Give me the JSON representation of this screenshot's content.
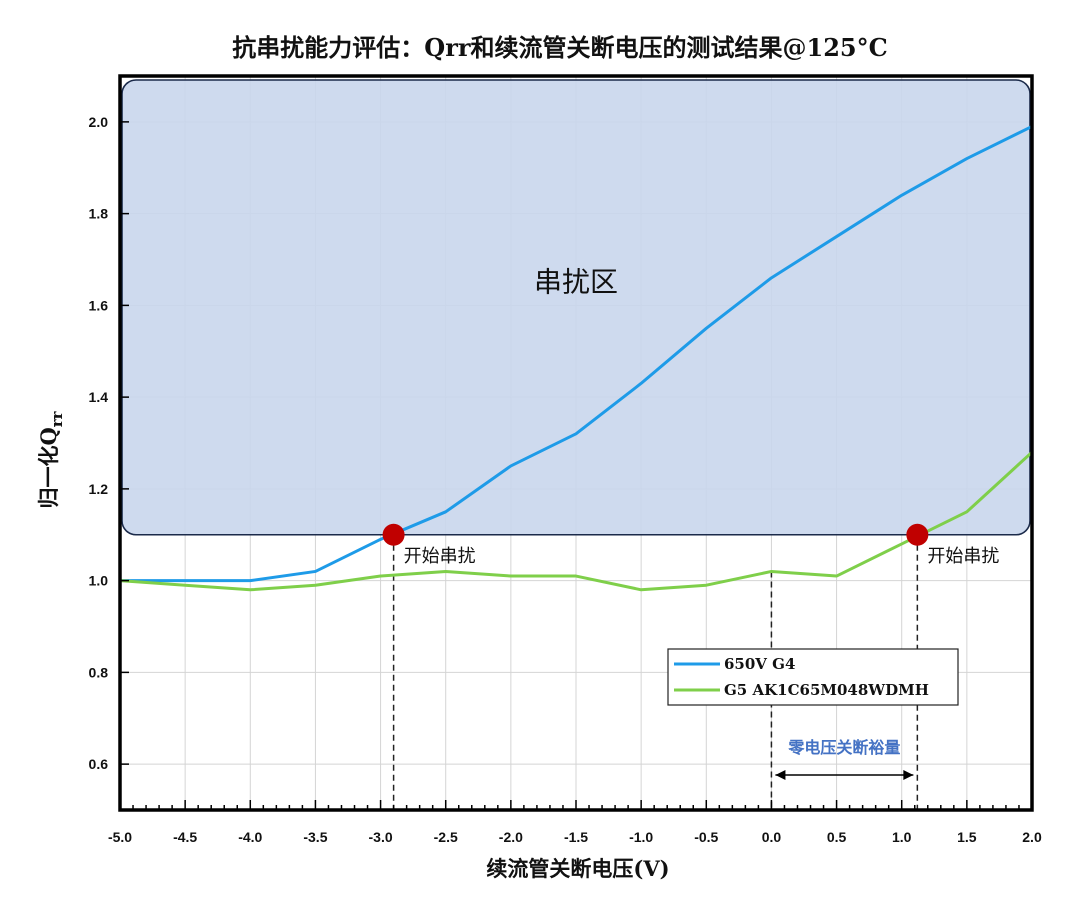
{
  "title": "抗串扰能力评估：Qrr和续流管关断电压的测试结果@125°C",
  "chart_data": {
    "type": "line",
    "title": "抗串扰能力评估：Qrr和续流管关断电压的测试结果@125°C",
    "xlabel": "续流管关断电压(V)",
    "ylabel": "归一化Q",
    "ylabel_sub": "rr",
    "xlim": [
      -5.0,
      2.0
    ],
    "ylim": [
      0.5,
      2.1
    ],
    "xticks": [
      "-5.0",
      "-4.5",
      "-4.0",
      "-3.5",
      "-3.0",
      "-2.5",
      "-2.0",
      "-1.5",
      "-1.0",
      "-0.5",
      "0.0",
      "0.5",
      "1.0",
      "1.5",
      "2.0"
    ],
    "yticks": [
      "0.6",
      "0.8",
      "1.0",
      "1.2",
      "1.4",
      "1.6",
      "1.8",
      "2.0"
    ],
    "grid": true,
    "legend_position": "lower-right",
    "series": [
      {
        "name": "650V G4",
        "color": "#1e9be8",
        "x": [
          -5.0,
          -4.5,
          -4.0,
          -3.5,
          -3.0,
          -2.5,
          -2.0,
          -1.5,
          -1.0,
          -0.5,
          0.0,
          0.5,
          1.0,
          1.5,
          2.0
        ],
        "y": [
          1.0,
          1.0,
          1.0,
          1.02,
          1.09,
          1.15,
          1.25,
          1.32,
          1.43,
          1.55,
          1.66,
          1.75,
          1.84,
          1.92,
          1.99
        ]
      },
      {
        "name": "G5 AK1C65M048WDMH",
        "color": "#7fcf4a",
        "x": [
          -5.0,
          -4.5,
          -4.0,
          -3.5,
          -3.0,
          -2.5,
          -2.0,
          -1.5,
          -1.0,
          -0.5,
          0.0,
          0.5,
          1.0,
          1.5,
          2.0
        ],
        "y": [
          1.0,
          0.99,
          0.98,
          0.99,
          1.01,
          1.02,
          1.01,
          1.01,
          0.98,
          0.99,
          1.02,
          1.01,
          1.08,
          1.15,
          1.28
        ]
      }
    ],
    "crosstalk_region": {
      "label": "串扰区",
      "y_from": 1.1,
      "y_to": 2.1,
      "color": "#c9d6ec"
    },
    "onset_markers": [
      {
        "x": -2.9,
        "y": 1.1,
        "label": "开始串扰"
      },
      {
        "x": 1.12,
        "y": 1.1,
        "label": "开始串扰"
      }
    ],
    "margin_annotation": {
      "label": "零电压关断裕量",
      "x_from": 0.0,
      "x_to": 1.12,
      "color": "#4472c4"
    },
    "marker_color": "#c00000"
  }
}
